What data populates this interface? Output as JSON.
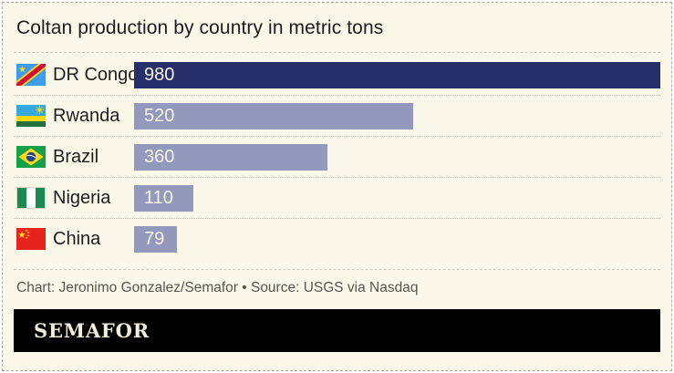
{
  "title": "Coltan production by country in metric tons",
  "chart_data": {
    "type": "bar",
    "orientation": "horizontal",
    "title": "Coltan production by country in metric tons",
    "unit": "metric tons",
    "categories": [
      "DR Congo",
      "Rwanda",
      "Brazil",
      "Nigeria",
      "China"
    ],
    "values": [
      980,
      520,
      360,
      110,
      79
    ],
    "xlim": [
      0,
      980
    ],
    "bar_colors": [
      "#272f6a",
      "#9299bd",
      "#9299bd",
      "#9299bd",
      "#9299bd"
    ],
    "value_label_color": "#f7f4e3",
    "value_labels_inside": true,
    "grid": false,
    "legend": false,
    "flags": [
      "dr-congo",
      "rwanda",
      "brazil",
      "nigeria",
      "china"
    ]
  },
  "footer": {
    "attribution": "Chart: Jeronimo Gonzalez/Semafor • Source: USGS via Nasdaq",
    "brand": "SEMAFOR"
  },
  "colors": {
    "card_background": "#faf8e8",
    "border_dashed": "#b2b1a8",
    "highlight_bar": "#272f6a",
    "regular_bar": "#9299bd",
    "footer_bar": "#000000",
    "brand_text": "#f3eedb",
    "title_text": "#1c1c1c",
    "attribution_text": "#55564f"
  }
}
